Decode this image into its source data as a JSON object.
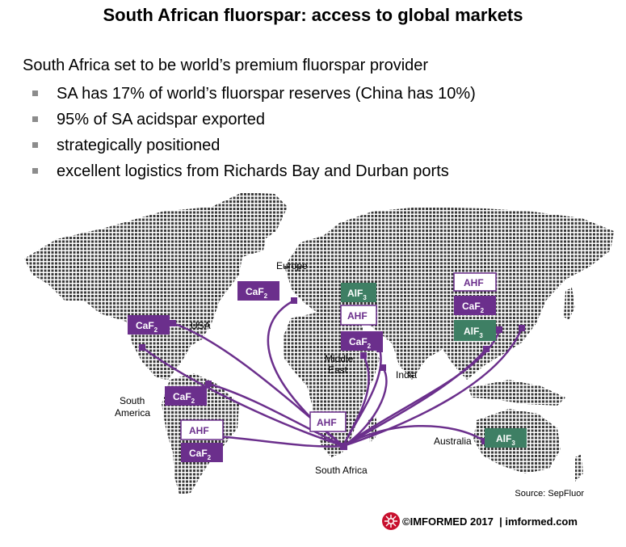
{
  "title": "South African fluorspar: access to global markets",
  "intro": "South Africa set to be world’s premium fluorspar provider",
  "bullets": [
    "SA has 17% of world’s fluorspar reserves (China has 10%)",
    "95% of SA acidspar exported",
    "strategically positioned",
    "excellent logistics from Richards Bay and Durban ports"
  ],
  "map": {
    "region_labels": {
      "europe": "Europe",
      "usa": "USA",
      "south_america": [
        "South",
        "America"
      ],
      "middle_east": [
        "Middle",
        "East"
      ],
      "india": "India",
      "australia": "Australia",
      "south_africa": "South Africa"
    },
    "box_labels": {
      "caf2": "CaF",
      "caf2_sub": "2",
      "alf3": "AlF",
      "alf3_sub": "3",
      "ahf": "AHF"
    }
  },
  "colors": {
    "purple": "#6b2f8c",
    "green": "#3e7f64",
    "dots": "#3a3a3a",
    "logo_red": "#c8102e"
  },
  "source": "Source: SepFluor",
  "footer": "©IMFORMED 2017  | imformed.com"
}
